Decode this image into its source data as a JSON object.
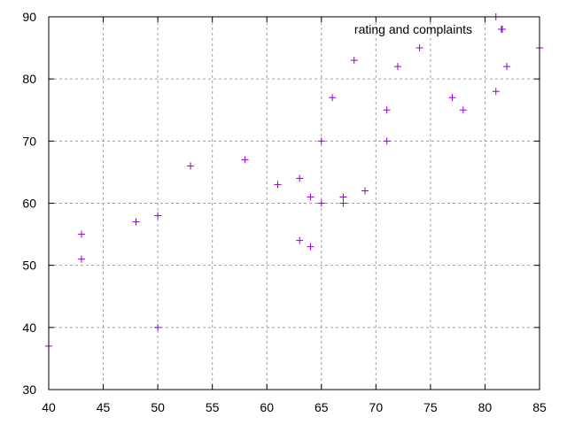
{
  "chart_data": {
    "type": "scatter",
    "title": "",
    "xlabel": "",
    "ylabel": "",
    "xlim": [
      40,
      85
    ],
    "ylim": [
      30,
      90
    ],
    "x_ticks": [
      40,
      45,
      50,
      55,
      60,
      65,
      70,
      75,
      80,
      85
    ],
    "y_ticks": [
      30,
      40,
      50,
      60,
      70,
      80,
      90
    ],
    "grid": true,
    "legend_position": "top-right",
    "marker": "plus",
    "colors": {
      "series": "#9400d3",
      "grid": "#a0a0a0",
      "axis": "#000000"
    },
    "series": [
      {
        "name": "rating and complaints",
        "points": [
          [
            40,
            37
          ],
          [
            43,
            55
          ],
          [
            43,
            51
          ],
          [
            48,
            57
          ],
          [
            50,
            58
          ],
          [
            50,
            40
          ],
          [
            53,
            66
          ],
          [
            58,
            67
          ],
          [
            61,
            63
          ],
          [
            63,
            64
          ],
          [
            63,
            54
          ],
          [
            64,
            61
          ],
          [
            64,
            53
          ],
          [
            65,
            70
          ],
          [
            65,
            60
          ],
          [
            66,
            77
          ],
          [
            67,
            61
          ],
          [
            67,
            60
          ],
          [
            68,
            83
          ],
          [
            69,
            62
          ],
          [
            71,
            75
          ],
          [
            71,
            70
          ],
          [
            72,
            82
          ],
          [
            74,
            85
          ],
          [
            77,
            77
          ],
          [
            78,
            75
          ],
          [
            81,
            90
          ],
          [
            81,
            78
          ],
          [
            81.5,
            88
          ],
          [
            82,
            82
          ],
          [
            85,
            85
          ]
        ]
      }
    ]
  }
}
